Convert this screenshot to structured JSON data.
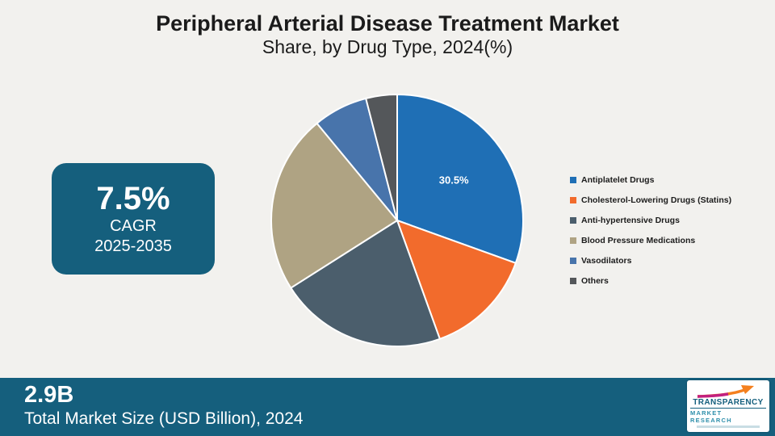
{
  "header": {
    "title": "Peripheral Arterial Disease Treatment Market",
    "subtitle": "Share, by Drug Type, 2024(%)"
  },
  "cagr": {
    "value": "7.5%",
    "label": "CAGR",
    "period": "2025-2035"
  },
  "footer": {
    "value": "2.9B",
    "label": "Total Market Size (USD Billion), 2024"
  },
  "logo": {
    "line1": "TRANSPARENCY",
    "line2": "MARKET RESEARCH"
  },
  "colors": {
    "accent_teal": "#155f7d",
    "background": "#f2f1ee",
    "logo_arrow_orange": "#f4801f",
    "logo_arrow_magenta": "#c2207f"
  },
  "chart_data": {
    "type": "pie",
    "title": "Peripheral Arterial Disease Treatment Market",
    "subtitle": "Share, by Drug Type, 2024(%)",
    "start_angle_deg": -90,
    "direction": "clockwise",
    "legend_position": "right",
    "series": [
      {
        "name": "Antiplatelet Drugs",
        "value": 30.5,
        "color": "#1f6fb5",
        "label": "30.5%"
      },
      {
        "name": "Cholesterol-Lowering Drugs (Statins)",
        "value": 14.0,
        "color": "#f26b2c",
        "label": ""
      },
      {
        "name": "Anti-hypertensive Drugs",
        "value": 21.5,
        "color": "#4b5e6c",
        "label": ""
      },
      {
        "name": "Blood Pressure Medications",
        "value": 23.0,
        "color": "#afa383",
        "label": ""
      },
      {
        "name": "Vasodilators",
        "value": 7.0,
        "color": "#4874ab",
        "label": ""
      },
      {
        "name": "Others",
        "value": 4.0,
        "color": "#54575a",
        "label": ""
      }
    ]
  }
}
